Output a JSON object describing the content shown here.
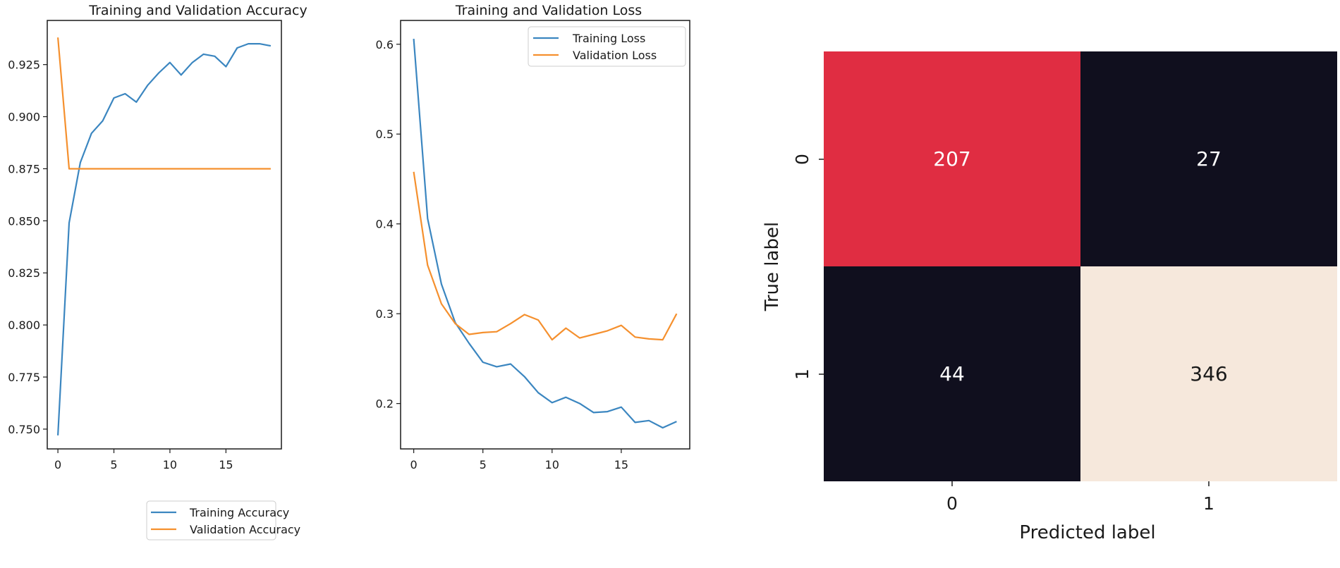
{
  "colors": {
    "training": "#3b86c0",
    "validation": "#f5902e",
    "cm_high": "#f6e8dc",
    "cm_mid": "#e02d42",
    "cm_low": "#100f1e"
  },
  "chart_data": [
    {
      "type": "line",
      "title": "Training and Validation Accuracy",
      "xlabel": "",
      "ylabel": "",
      "xlim": [
        -0.95,
        19.95
      ],
      "ylim": [
        0.7405,
        0.9462
      ],
      "x_ticks": [
        0,
        5,
        10,
        15
      ],
      "y_ticks": [
        0.75,
        0.775,
        0.8,
        0.825,
        0.85,
        0.875,
        0.9,
        0.925
      ],
      "y_tick_labels": [
        "0.750",
        "0.775",
        "0.800",
        "0.825",
        "0.850",
        "0.875",
        "0.900",
        "0.925"
      ],
      "legend_location": "lower-right",
      "x": [
        0,
        1,
        2,
        3,
        4,
        5,
        6,
        7,
        8,
        9,
        10,
        11,
        12,
        13,
        14,
        15,
        16,
        17,
        18,
        19
      ],
      "series": [
        {
          "name": "Training Accuracy",
          "color_key": "training",
          "values": [
            0.747,
            0.849,
            0.878,
            0.892,
            0.898,
            0.909,
            0.911,
            0.907,
            0.915,
            0.921,
            0.926,
            0.92,
            0.926,
            0.93,
            0.929,
            0.924,
            0.933,
            0.935,
            0.935,
            0.934
          ]
        },
        {
          "name": "Validation Accuracy",
          "color_key": "validation",
          "values": [
            0.938,
            0.875,
            0.875,
            0.875,
            0.875,
            0.875,
            0.875,
            0.875,
            0.875,
            0.875,
            0.875,
            0.875,
            0.875,
            0.875,
            0.875,
            0.875,
            0.875,
            0.875,
            0.875,
            0.875
          ]
        }
      ]
    },
    {
      "type": "line",
      "title": "Training and Validation Loss",
      "xlabel": "",
      "ylabel": "",
      "xlim": [
        -0.95,
        19.95
      ],
      "ylim": [
        0.1495,
        0.6265
      ],
      "x_ticks": [
        0,
        5,
        10,
        15
      ],
      "y_ticks": [
        0.2,
        0.3,
        0.4,
        0.5,
        0.6
      ],
      "y_tick_labels": [
        "0.2",
        "0.3",
        "0.4",
        "0.5",
        "0.6"
      ],
      "legend_location": "upper-right",
      "x": [
        0,
        1,
        2,
        3,
        4,
        5,
        6,
        7,
        8,
        9,
        10,
        11,
        12,
        13,
        14,
        15,
        16,
        17,
        18,
        19
      ],
      "series": [
        {
          "name": "Training Loss",
          "color_key": "training",
          "values": [
            0.606,
            0.406,
            0.333,
            0.29,
            0.267,
            0.246,
            0.241,
            0.244,
            0.23,
            0.212,
            0.201,
            0.207,
            0.2,
            0.19,
            0.191,
            0.196,
            0.179,
            0.181,
            0.173,
            0.18
          ]
        },
        {
          "name": "Validation Loss",
          "color_key": "validation",
          "values": [
            0.458,
            0.354,
            0.311,
            0.289,
            0.277,
            0.279,
            0.28,
            0.289,
            0.299,
            0.293,
            0.271,
            0.284,
            0.273,
            0.277,
            0.281,
            0.287,
            0.274,
            0.272,
            0.271,
            0.3
          ]
        }
      ]
    },
    {
      "type": "heatmap",
      "title": "",
      "xlabel": "Predicted label",
      "ylabel": "True label",
      "x_categories": [
        "0",
        "1"
      ],
      "y_categories": [
        "0",
        "1"
      ],
      "values": [
        [
          207,
          27
        ],
        [
          44,
          346
        ]
      ],
      "cell_color_keys": [
        [
          "cm_mid",
          "cm_low"
        ],
        [
          "cm_low",
          "cm_high"
        ]
      ],
      "text_color": "#ffffff",
      "text_color_light_cell": "#1a1a1a"
    }
  ]
}
